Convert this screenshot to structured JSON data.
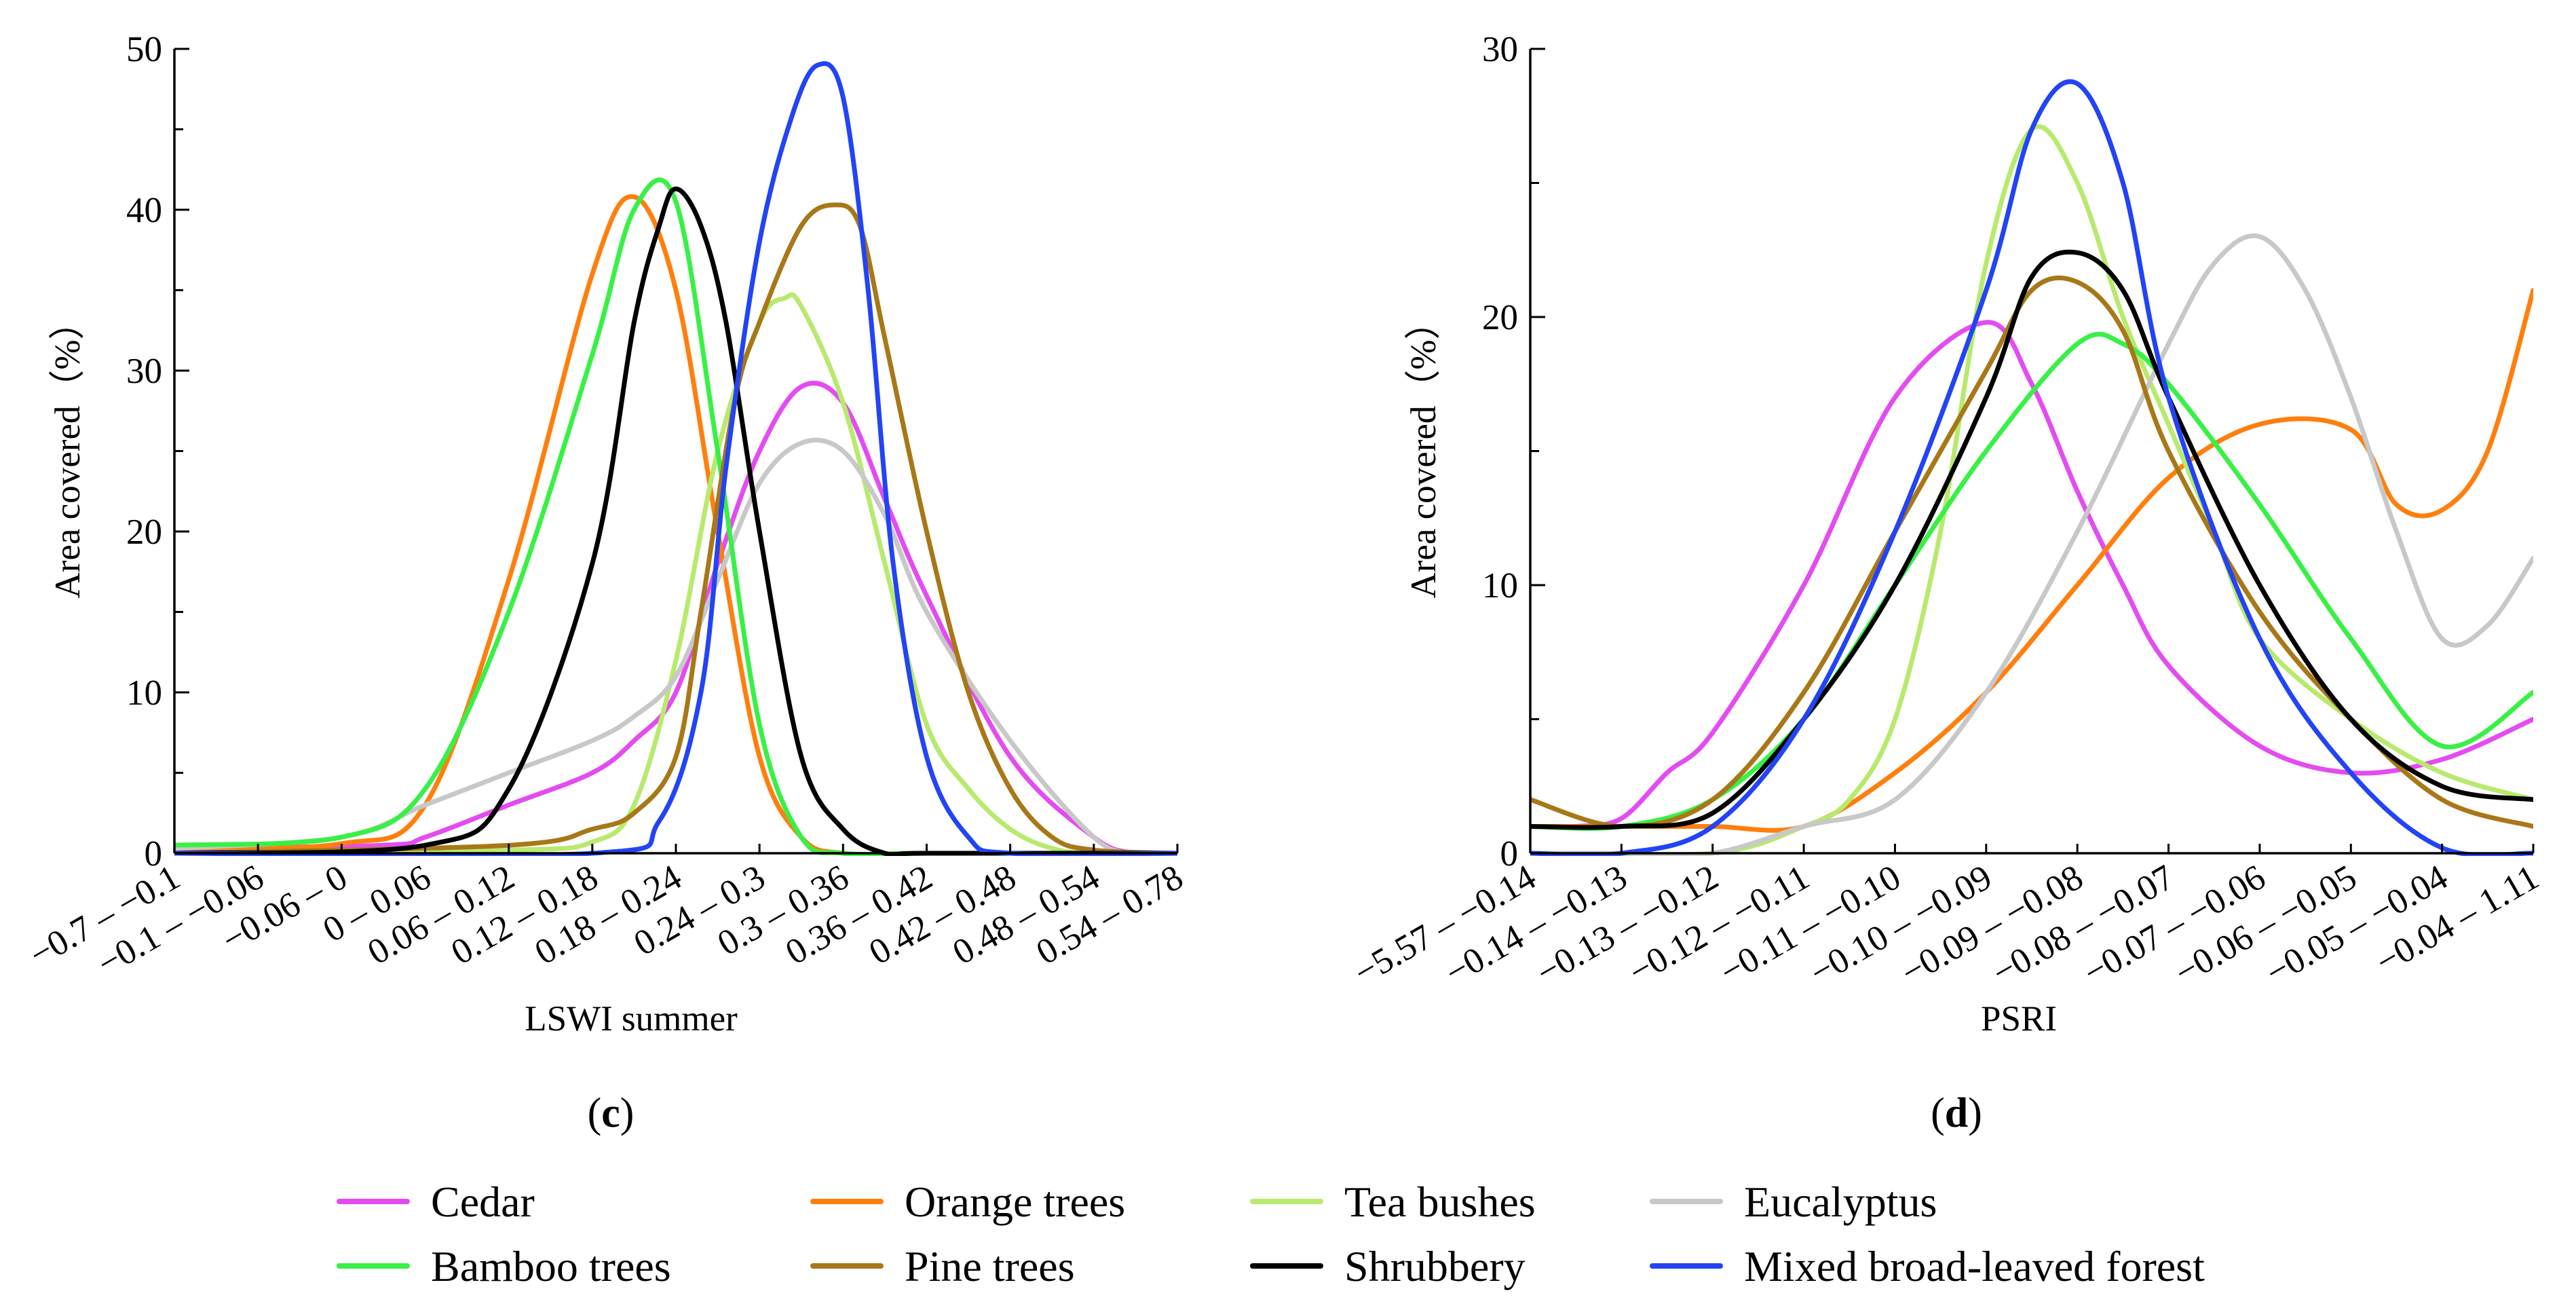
{
  "legend": [
    {
      "name": "Cedar",
      "color": "#e34cf0"
    },
    {
      "name": "Orange trees",
      "color": "#ff7f0e"
    },
    {
      "name": "Tea bushes",
      "color": "#b8ea6e"
    },
    {
      "name": "Eucalyptus",
      "color": "#c8c8c8"
    },
    {
      "name": "Bamboo trees",
      "color": "#38f046"
    },
    {
      "name": "Pine trees",
      "color": "#a87818"
    },
    {
      "name": "Shrubbery",
      "color": "#000000"
    },
    {
      "name": "Mixed broad-leaved forest",
      "color": "#2244f5"
    }
  ],
  "chart_data": [
    {
      "type": "line",
      "panel": "(c)",
      "panel_letter": "c",
      "xlabel": "LSWI summer",
      "ylabel": "Area covered（%）",
      "ylim": [
        0,
        50
      ],
      "yticks": [
        0,
        10,
        20,
        30,
        40,
        50
      ],
      "categories": [
        "−0.7 – −0.1",
        "−0.1 – −0.06",
        "−0.06 – 0",
        "0 – 0.06",
        "0.06 – 0.12",
        "0.12 – 0.18",
        "0.18 – 0.24",
        "0.24 – 0.3",
        "0.3 – 0.36",
        "0.36 – 0.42",
        "0.42 – 0.48",
        "0.48 – 0.54",
        "0.54 – 0.78"
      ],
      "series": [
        {
          "name": "Cedar",
          "x": [
            0,
            2.5,
            3,
            4,
            5,
            5.5,
            6,
            6.5,
            7,
            7.5,
            8,
            8.5,
            9,
            10,
            11,
            11.5,
            12
          ],
          "values": [
            0.3,
            0.5,
            1,
            3,
            5,
            7,
            10,
            18,
            25,
            29,
            28,
            22,
            16,
            6,
            1,
            0,
            0
          ]
        },
        {
          "name": "Orange trees",
          "x": [
            0,
            2,
            3,
            4,
            5,
            5.5,
            6,
            6.5,
            7,
            7.5,
            8,
            9,
            12
          ],
          "values": [
            0.3,
            0.6,
            3,
            17,
            36,
            40.8,
            35,
            20,
            6,
            1,
            0,
            0,
            0
          ]
        },
        {
          "name": "Tea bushes",
          "x": [
            0,
            4,
            5,
            5.5,
            6,
            6.5,
            7,
            7.3,
            7.5,
            8,
            8.5,
            9,
            9.5,
            10,
            10.5,
            11,
            12
          ],
          "values": [
            0,
            0.2,
            0.7,
            3,
            12,
            25,
            33,
            34.5,
            34,
            28,
            18,
            8,
            4,
            1.5,
            0.3,
            0,
            0
          ]
        },
        {
          "name": "Eucalyptus",
          "x": [
            0,
            2,
            3,
            4,
            5,
            5.5,
            6,
            6.5,
            7,
            7.5,
            8,
            8.5,
            9,
            10,
            11,
            11.5,
            12
          ],
          "values": [
            0.3,
            1,
            3,
            5,
            7,
            8.5,
            11,
            17,
            23,
            25.5,
            25,
            21,
            15,
            7,
            1,
            0,
            0
          ]
        },
        {
          "name": "Bamboo trees",
          "x": [
            0,
            2,
            3,
            4,
            5,
            5.5,
            6,
            6.5,
            7,
            7.5,
            8,
            9,
            12
          ],
          "values": [
            0.5,
            1,
            4,
            15,
            31,
            40,
            40.5,
            25,
            8,
            1,
            0,
            0,
            0
          ]
        },
        {
          "name": "Pine trees",
          "x": [
            0,
            4,
            5,
            5.5,
            6,
            6.3,
            6.7,
            7,
            7.5,
            7.9,
            8.2,
            8.5,
            9,
            9.5,
            10,
            10.5,
            11,
            12
          ],
          "values": [
            0,
            0.5,
            1.5,
            2.5,
            6,
            15,
            28,
            33,
            39,
            40.3,
            39,
            32,
            20,
            10,
            4,
            1,
            0.2,
            0
          ]
        },
        {
          "name": "Shrubbery",
          "x": [
            0,
            3,
            4,
            5,
            5.5,
            5.8,
            6,
            6.3,
            6.6,
            7,
            7.5,
            8,
            8.5,
            9,
            12
          ],
          "values": [
            0,
            0.5,
            4,
            18,
            33,
            39,
            41.3,
            39,
            33,
            20,
            6,
            1.5,
            0,
            0,
            0
          ]
        },
        {
          "name": "Mixed broad-leaved forest",
          "x": [
            0,
            5,
            5.8,
            6.3,
            6.6,
            7,
            7.4,
            7.7,
            8,
            8.3,
            8.6,
            9,
            9.5,
            10,
            12
          ],
          "values": [
            0,
            0,
            2,
            10,
            24,
            38,
            46,
            49,
            47,
            35,
            18,
            6,
            1,
            0,
            0
          ]
        }
      ]
    },
    {
      "type": "line",
      "panel": "(d)",
      "panel_letter": "d",
      "xlabel": "PSRI",
      "ylabel": "Area covered（%）",
      "ylim": [
        0,
        30
      ],
      "yticks": [
        0,
        10,
        20,
        30
      ],
      "categories": [
        "−5.57 – −0.14",
        "−0.14 – −0.13",
        "−0.13 – −0.12",
        "−0.12 – −0.11",
        "−0.11 – −0.10",
        "−0.10 – −0.09",
        "−0.09 – −0.08",
        "−0.08 – −0.07",
        "−0.07 – −0.06",
        "−0.06 – −0.05",
        "−0.05 – −0.04",
        "−0.04 – 1.11"
      ],
      "series": [
        {
          "name": "Cedar",
          "x": [
            0,
            0.5,
            1,
            1.5,
            2,
            3,
            4,
            5,
            5.5,
            6,
            6.5,
            7,
            8,
            9,
            10,
            11
          ],
          "values": [
            1,
            1,
            1.3,
            3,
            4.5,
            10,
            17,
            19.8,
            17.5,
            13.5,
            10,
            7,
            4,
            3,
            3.5,
            5
          ]
        },
        {
          "name": "Orange trees",
          "x": [
            0,
            1,
            2,
            3,
            4,
            5,
            6,
            7,
            8,
            9,
            9.5,
            10,
            10.5,
            11
          ],
          "values": [
            1,
            1,
            1,
            1,
            3,
            6,
            10,
            14,
            16,
            15.8,
            13,
            12.8,
            15,
            21
          ]
        },
        {
          "name": "Tea bushes",
          "x": [
            0,
            2,
            3,
            3.5,
            4,
            4.5,
            5,
            5.5,
            6,
            6.5,
            7,
            7.5,
            8,
            9,
            10,
            11
          ],
          "values": [
            0,
            0,
            1,
            2,
            5,
            12,
            22,
            27,
            25,
            20,
            16,
            12,
            8,
            5,
            3,
            2
          ]
        },
        {
          "name": "Eucalyptus",
          "x": [
            0,
            1,
            2,
            3,
            4,
            5,
            6,
            7,
            7.5,
            8,
            8.5,
            9,
            9.5,
            10,
            10.5,
            11
          ],
          "values": [
            0,
            0,
            0,
            1,
            2,
            6,
            12,
            19,
            22,
            23,
            21,
            17,
            12,
            8,
            8.5,
            11
          ]
        },
        {
          "name": "Bamboo trees",
          "x": [
            0,
            1,
            2,
            3,
            4,
            5,
            6,
            6.5,
            7,
            8,
            9,
            10,
            11
          ],
          "values": [
            1,
            1,
            2,
            5,
            10,
            15,
            19,
            19,
            17.5,
            13,
            8,
            4,
            6
          ]
        },
        {
          "name": "Pine trees",
          "x": [
            0,
            1,
            2,
            3,
            4,
            5,
            5.5,
            6,
            6.5,
            7,
            8,
            9,
            10,
            11
          ],
          "values": [
            2,
            1,
            2,
            6,
            12,
            18,
            21,
            21.3,
            19.5,
            15,
            9,
            5,
            2,
            1
          ]
        },
        {
          "name": "Shrubbery",
          "x": [
            0,
            1,
            2,
            3,
            4,
            5,
            5.5,
            6,
            6.5,
            7,
            8,
            9,
            10,
            11
          ],
          "values": [
            1,
            1,
            1.5,
            5,
            10,
            17,
            21.5,
            22.4,
            21,
            17,
            10,
            5,
            2.5,
            2
          ]
        },
        {
          "name": "Mixed broad-leaved forest",
          "x": [
            0,
            1,
            2,
            3,
            4,
            5,
            5.5,
            6,
            6.5,
            7,
            8,
            9,
            10,
            11
          ],
          "values": [
            0,
            0,
            1,
            5,
            12,
            21,
            27,
            28.7,
            25,
            17,
            8,
            3,
            0.2,
            0
          ]
        }
      ]
    }
  ]
}
